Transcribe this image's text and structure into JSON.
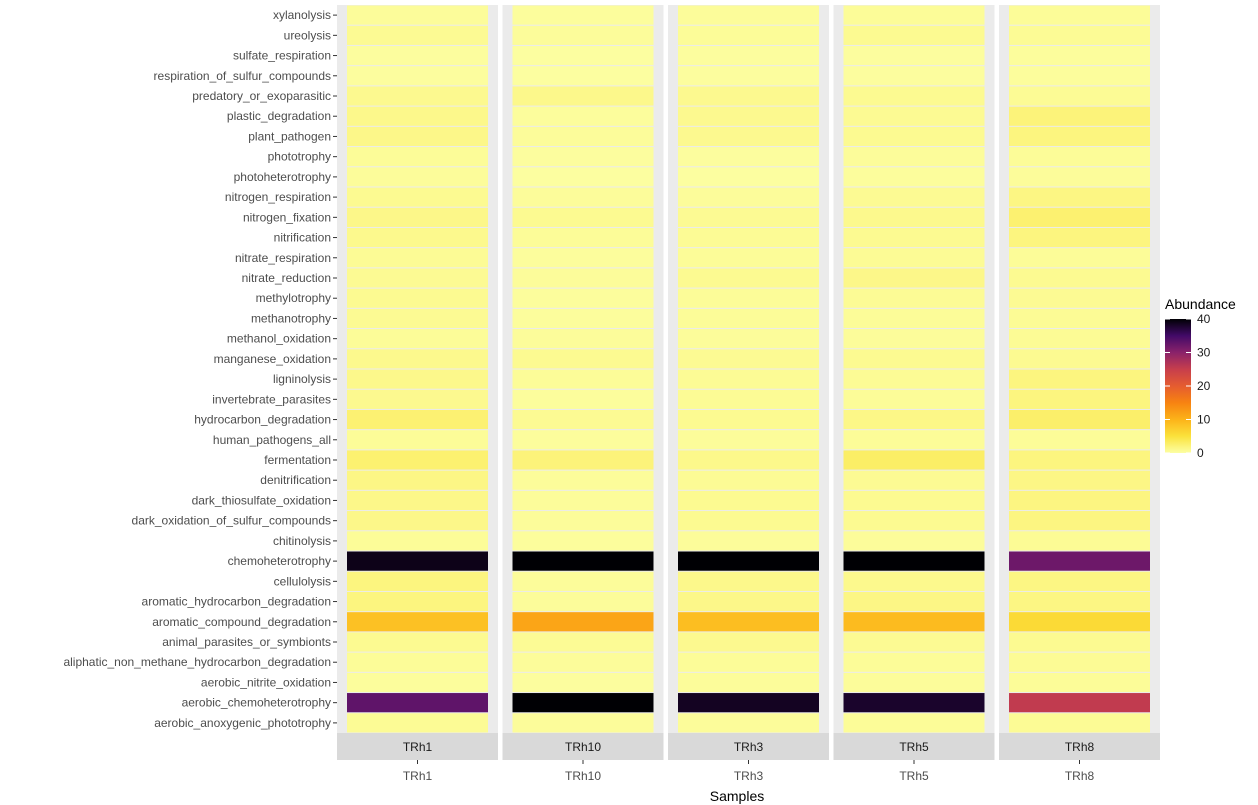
{
  "chart_data": {
    "type": "heatmap",
    "xlabel": "Samples",
    "ylabel": "",
    "legend": {
      "title": "Abundance",
      "position": "right",
      "range": [
        0,
        40
      ],
      "ticks": [
        0,
        10,
        20,
        30,
        40
      ]
    },
    "panels": [
      "TRh1",
      "TRh10",
      "TRh3",
      "TRh5",
      "TRh8"
    ],
    "categories": [
      "xylanolysis",
      "ureolysis",
      "sulfate_respiration",
      "respiration_of_sulfur_compounds",
      "predatory_or_exoparasitic",
      "plastic_degradation",
      "plant_pathogen",
      "phototrophy",
      "photoheterotrophy",
      "nitrogen_respiration",
      "nitrogen_fixation",
      "nitrification",
      "nitrate_respiration",
      "nitrate_reduction",
      "methylotrophy",
      "methanotrophy",
      "methanol_oxidation",
      "manganese_oxidation",
      "ligninolysis",
      "invertebrate_parasites",
      "hydrocarbon_degradation",
      "human_pathogens_all",
      "fermentation",
      "denitrification",
      "dark_thiosulfate_oxidation",
      "dark_oxidation_of_sulfur_compounds",
      "chitinolysis",
      "chemoheterotrophy",
      "cellulolysis",
      "aromatic_hydrocarbon_degradation",
      "aromatic_compound_degradation",
      "animal_parasites_or_symbionts",
      "aliphatic_non_methane_hydrocarbon_degradation",
      "aerobic_nitrite_oxidation",
      "aerobic_chemoheterotrophy",
      "aerobic_anoxygenic_phototrophy"
    ],
    "series": [
      {
        "name": "TRh1",
        "values": [
          0.5,
          0.8,
          0.3,
          0.3,
          1.0,
          1.2,
          1.3,
          0.6,
          0.5,
          0.9,
          1.3,
          1.1,
          0.7,
          0.8,
          0.9,
          0.8,
          0.6,
          1.1,
          1.2,
          1.0,
          2.4,
          0.6,
          2.5,
          1.5,
          1.3,
          1.3,
          0.6,
          39.0,
          1.8,
          1.8,
          8.5,
          0.9,
          0.6,
          0.4,
          33.0,
          0.7
        ]
      },
      {
        "name": "TRh10",
        "values": [
          0.4,
          0.5,
          0.2,
          0.2,
          1.2,
          0.4,
          0.5,
          0.3,
          0.2,
          0.5,
          0.9,
          0.6,
          0.4,
          0.5,
          0.4,
          0.4,
          0.5,
          0.9,
          0.6,
          0.4,
          0.8,
          0.4,
          2.0,
          0.5,
          0.5,
          0.5,
          0.4,
          40.0,
          0.5,
          0.5,
          11.5,
          0.7,
          0.5,
          0.3,
          40.0,
          0.5
        ]
      },
      {
        "name": "TRh3",
        "values": [
          0.5,
          0.6,
          0.3,
          0.3,
          1.0,
          1.0,
          1.0,
          0.3,
          0.2,
          0.5,
          0.8,
          0.7,
          0.6,
          0.9,
          0.6,
          0.6,
          0.5,
          0.8,
          0.7,
          0.7,
          0.9,
          0.5,
          1.2,
          0.7,
          0.9,
          0.9,
          0.5,
          40.0,
          1.2,
          1.3,
          8.8,
          1.0,
          0.6,
          0.5,
          38.5,
          0.5
        ]
      },
      {
        "name": "TRh5",
        "values": [
          0.6,
          0.9,
          0.3,
          0.3,
          0.9,
          0.8,
          0.9,
          0.5,
          0.4,
          0.8,
          1.1,
          0.9,
          0.7,
          1.3,
          0.7,
          0.6,
          0.5,
          0.9,
          0.7,
          0.6,
          1.4,
          0.6,
          3.0,
          0.8,
          0.9,
          0.9,
          0.5,
          40.0,
          1.1,
          1.5,
          9.2,
          0.8,
          0.6,
          0.5,
          38.0,
          0.6
        ]
      },
      {
        "name": "TRh8",
        "values": [
          0.6,
          0.7,
          0.4,
          0.4,
          0.7,
          2.0,
          1.8,
          0.6,
          0.5,
          1.6,
          2.5,
          1.8,
          0.6,
          0.9,
          0.8,
          0.7,
          0.7,
          0.9,
          1.8,
          1.8,
          2.8,
          0.6,
          1.8,
          1.5,
          1.7,
          1.7,
          0.7,
          32.0,
          1.6,
          1.6,
          5.8,
          0.9,
          0.7,
          0.6,
          25.5,
          0.7
        ]
      }
    ]
  }
}
